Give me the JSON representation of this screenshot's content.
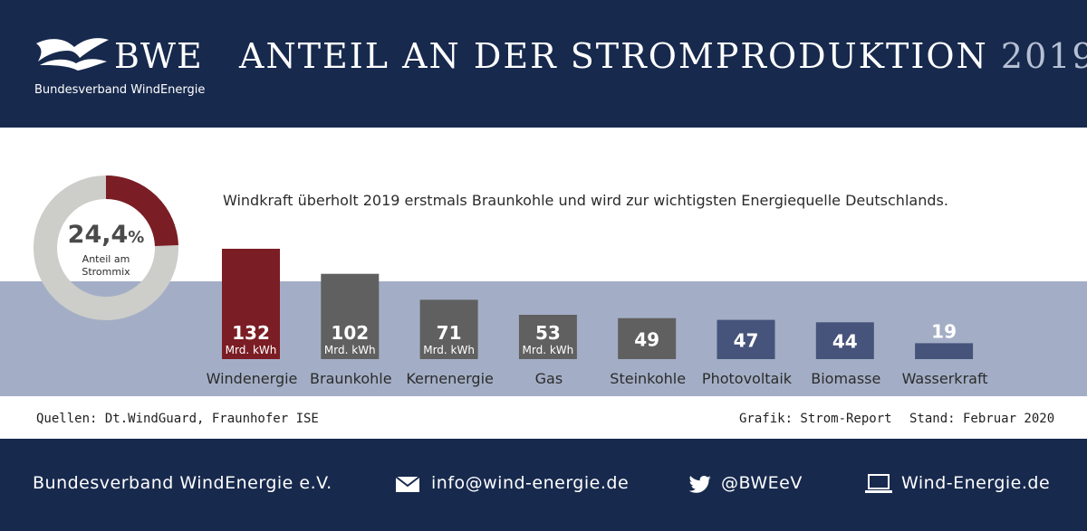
{
  "header": {
    "logo_text": "BWE",
    "logo_subtitle": "Bundesverband WindEnergie",
    "title_main": "ANTEIL AN DER STROMPRODUKTION",
    "title_year": "2019"
  },
  "lead_text": "Windkraft überholt 2019 erstmals Braunkohle und wird zur wichtigsten Energiequelle Deutschlands.",
  "donut": {
    "value": 24.4,
    "value_text": "24,4",
    "unit": "%",
    "caption_line1": "Anteil am",
    "caption_line2": "Strommix",
    "highlight_color": "#7b1d24",
    "rest_color": "#cdcdc9"
  },
  "chart_data": {
    "type": "bar",
    "title": "ANTEIL AN DER STROMPRODUKTION 2019",
    "categories": [
      "Windenergie",
      "Braunkohle",
      "Kernenergie",
      "Gas",
      "Steinkohle",
      "Photovoltaik",
      "Biomasse",
      "Wasserkraft"
    ],
    "values": [
      132,
      102,
      71,
      53,
      49,
      47,
      44,
      19
    ],
    "unit_label": "Mrd. kWh",
    "unit_shown": [
      true,
      true,
      true,
      true,
      false,
      false,
      false,
      false
    ],
    "colors": [
      "#7b1d24",
      "#606060",
      "#606060",
      "#606060",
      "#606060",
      "#46537a",
      "#46537a",
      "#46537a"
    ],
    "ylim": [
      0,
      132
    ],
    "grid": false,
    "legend": "none"
  },
  "footer_notes": {
    "sources": "Quellen: Dt.WindGuard, Fraunhofer ISE",
    "credit": "Grafik: Strom-Report",
    "stand": "Stand: Februar 2020"
  },
  "footer": {
    "org": "Bundesverband WindEnergie e.V.",
    "email": "info@wind-energie.de",
    "twitter": "@BWEeV",
    "website": "Wind-Energie.de",
    "icons": [
      "envelope-icon",
      "twitter-bird-icon",
      "laptop-icon"
    ]
  }
}
